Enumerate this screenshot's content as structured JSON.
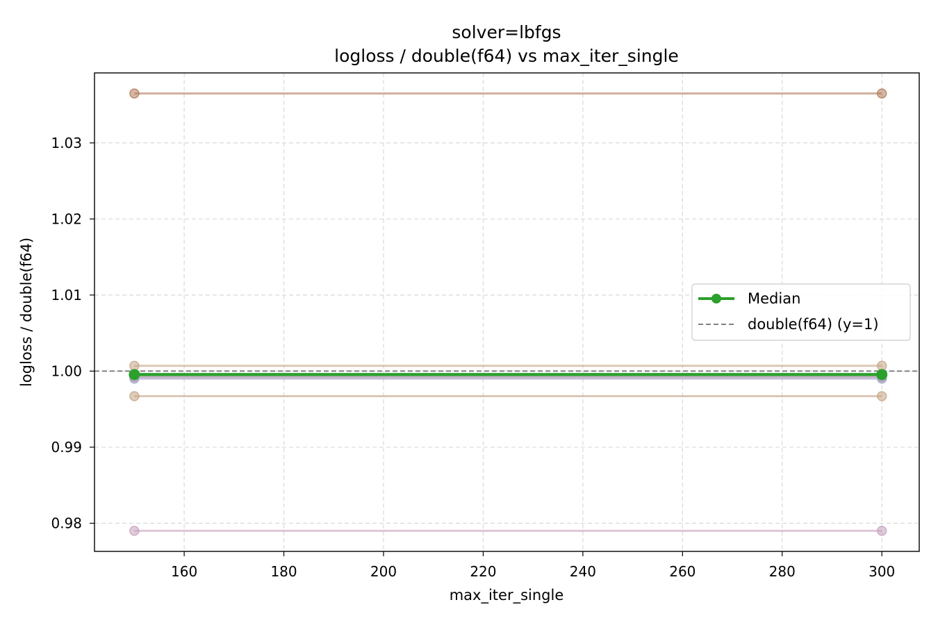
{
  "chart_data": {
    "type": "line",
    "title": "solver=lbfgs",
    "subtitle": "logloss / double(f64) vs max_iter_single",
    "xlabel": "max_iter_single",
    "ylabel": "logloss / double(f64)",
    "xlim": [
      142,
      307.5
    ],
    "ylim": [
      0.9763,
      1.0392
    ],
    "xticks": [
      160,
      180,
      200,
      220,
      240,
      260,
      280,
      300
    ],
    "xtick_labels": [
      "160",
      "180",
      "200",
      "220",
      "240",
      "260",
      "280",
      "300"
    ],
    "yticks": [
      0.98,
      0.99,
      1.0,
      1.01,
      1.02,
      1.03
    ],
    "ytick_labels": [
      "0.98",
      "0.99",
      "1.00",
      "1.01",
      "1.02",
      "1.03"
    ],
    "grid": true,
    "legend_position": "center-right",
    "x": [
      150,
      300
    ],
    "series": [
      {
        "values": [
          1.0365,
          1.0365
        ],
        "color": "#b07a5a"
      },
      {
        "values": [
          1.0007,
          1.0007
        ],
        "color": "#c4a484"
      },
      {
        "values": [
          0.9992,
          0.9992
        ],
        "color": "#a97fa3"
      },
      {
        "values": [
          0.999,
          0.999
        ],
        "color": "#a9a9c9"
      },
      {
        "values": [
          0.9967,
          0.9967
        ],
        "color": "#c4a484"
      },
      {
        "values": [
          0.979,
          0.979
        ],
        "color": "#c6a0bc"
      }
    ],
    "median": {
      "name": "Median",
      "values": [
        0.99955,
        0.99955
      ],
      "color": "#2ca02c"
    },
    "reference": {
      "name": "double(f64) (y=1)",
      "y": 1.0,
      "color": "#808080"
    }
  }
}
